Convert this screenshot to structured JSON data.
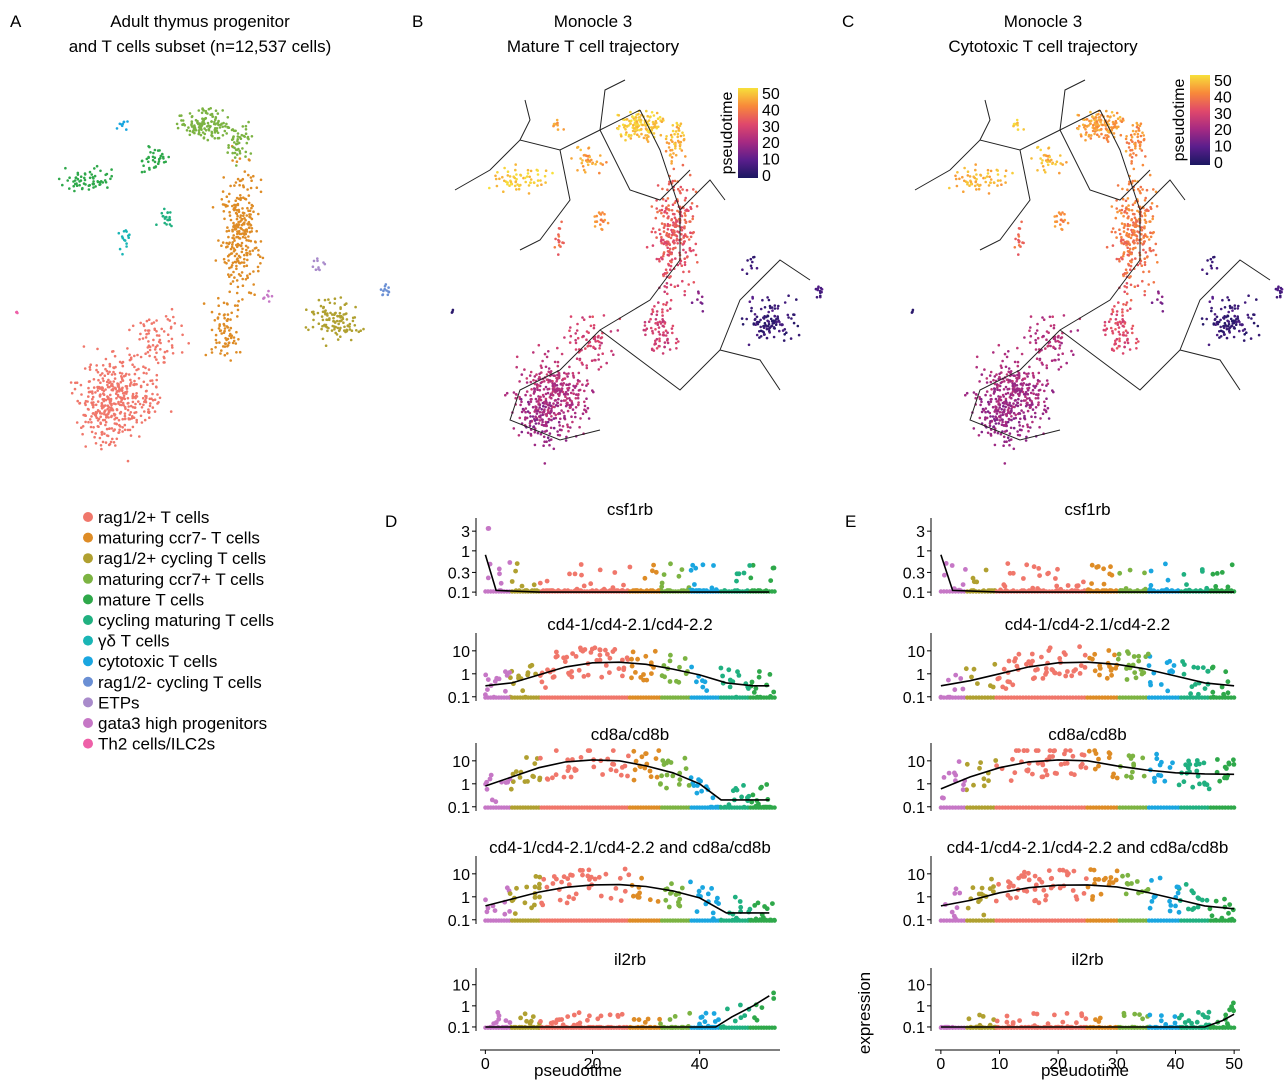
{
  "panels": {
    "A": {
      "letter": "A",
      "title_line1": "Adult thymus progenitor",
      "title_line2": "and T cells subset (n=12,537 cells)"
    },
    "B": {
      "letter": "B",
      "title_line1": "Monocle 3",
      "title_line2": "Mature T cell trajectory"
    },
    "C": {
      "letter": "C",
      "title_line1": "Monocle 3",
      "title_line2": "Cytotoxic T cell trajectory"
    },
    "D": {
      "letter": "D"
    },
    "E": {
      "letter": "E"
    }
  },
  "legend": [
    {
      "label": "rag1/2+ T cells",
      "color": "#F0776B"
    },
    {
      "label": "maturing ccr7- T cells",
      "color": "#DE8C26"
    },
    {
      "label": "rag1/2+ cycling T cells",
      "color": "#B0A030"
    },
    {
      "label": "maturing ccr7+ T cells",
      "color": "#7CB342"
    },
    {
      "label": "mature T cells",
      "color": "#2EA84A"
    },
    {
      "label": "cycling maturing T cells",
      "color": "#20B080"
    },
    {
      "label": "γδ T cells",
      "color": "#1AB5B5"
    },
    {
      "label": "cytotoxic T cells",
      "color": "#1AA6E0"
    },
    {
      "label": "rag1/2- cycling T cells",
      "color": "#6A8FD4"
    },
    {
      "label": "ETPs",
      "color": "#A98BCB"
    },
    {
      "label": "gata3 high progenitors",
      "color": "#C677C6"
    },
    {
      "label": "Th2 cells/ILC2s",
      "color": "#EE60A8"
    }
  ],
  "colorbar": {
    "title": "pseudotime",
    "ticks": [
      "0",
      "10",
      "20",
      "30",
      "40",
      "50"
    ],
    "colors": [
      "#1A1760",
      "#5A1E8C",
      "#A62A82",
      "#E0486B",
      "#F8893A",
      "#F7E03A"
    ]
  },
  "axis": {
    "xlabel": "pseudotime",
    "ylabel": "expression"
  },
  "chart_data": [
    {
      "type": "scatter",
      "panel": "D",
      "scale_y": "log",
      "x_ticks": [
        "0",
        "20",
        "40"
      ],
      "xlim": [
        -1,
        55
      ],
      "xlabel": "pseudotime",
      "facets": [
        {
          "title": "csf1rb",
          "y_ticks": [
            "3",
            "1",
            "0.3",
            "0.1"
          ],
          "ylim": [
            0.09,
            5
          ],
          "trend": [
            [
              0,
              0.8
            ],
            [
              2,
              0.11
            ],
            [
              10,
              0.1
            ],
            [
              30,
              0.1
            ],
            [
              53,
              0.1
            ]
          ]
        },
        {
          "title": "cd4-1/cd4-2.1/cd4-2.2",
          "y_ticks": [
            "10",
            "1",
            "0.1"
          ],
          "ylim": [
            0.08,
            40
          ],
          "trend": [
            [
              0,
              0.3
            ],
            [
              5,
              0.4
            ],
            [
              10,
              0.9
            ],
            [
              15,
              2
            ],
            [
              20,
              3
            ],
            [
              25,
              3.2
            ],
            [
              30,
              2.6
            ],
            [
              35,
              1.6
            ],
            [
              40,
              0.9
            ],
            [
              45,
              0.4
            ],
            [
              50,
              0.3
            ],
            [
              53,
              0.3
            ]
          ]
        },
        {
          "title": "cd8a/cd8b",
          "y_ticks": [
            "10",
            "1",
            "0.1"
          ],
          "ylim": [
            0.08,
            40
          ],
          "trend": [
            [
              0,
              0.8
            ],
            [
              5,
              2
            ],
            [
              10,
              5
            ],
            [
              15,
              9
            ],
            [
              20,
              11
            ],
            [
              25,
              10
            ],
            [
              30,
              6
            ],
            [
              35,
              3
            ],
            [
              40,
              1
            ],
            [
              44,
              0.2
            ],
            [
              53,
              0.2
            ]
          ]
        },
        {
          "title": "cd4-1/cd4-2.1/cd4-2.2 and cd8a/cd8b",
          "y_ticks": [
            "10",
            "1",
            "0.1"
          ],
          "ylim": [
            0.08,
            40
          ],
          "trend": [
            [
              0,
              0.4
            ],
            [
              5,
              0.8
            ],
            [
              10,
              1.6
            ],
            [
              15,
              2.6
            ],
            [
              20,
              3.3
            ],
            [
              25,
              3.4
            ],
            [
              30,
              2.8
            ],
            [
              35,
              1.8
            ],
            [
              40,
              0.9
            ],
            [
              45,
              0.2
            ],
            [
              53,
              0.2
            ]
          ]
        },
        {
          "title": "il2rb",
          "y_ticks": [
            "10",
            "1",
            "0.1"
          ],
          "ylim": [
            0.08,
            40
          ],
          "trend": [
            [
              0,
              0.1
            ],
            [
              40,
              0.1
            ],
            [
              43,
              0.1
            ],
            [
              46,
              0.3
            ],
            [
              50,
              1
            ],
            [
              53,
              3
            ]
          ]
        }
      ]
    },
    {
      "type": "scatter",
      "panel": "E",
      "scale_y": "log",
      "x_ticks": [
        "0",
        "10",
        "20",
        "30",
        "40",
        "50"
      ],
      "xlim": [
        -1,
        51
      ],
      "xlabel": "pseudotime",
      "ylabel": "expression",
      "facets": [
        {
          "title": "csf1rb",
          "y_ticks": [
            "3",
            "1",
            "0.3",
            "0.1"
          ],
          "ylim": [
            0.09,
            5
          ],
          "trend": [
            [
              0,
              0.8
            ],
            [
              2,
              0.11
            ],
            [
              10,
              0.1
            ],
            [
              30,
              0.1
            ],
            [
              50,
              0.1
            ]
          ]
        },
        {
          "title": "cd4-1/cd4-2.1/cd4-2.2",
          "y_ticks": [
            "10",
            "1",
            "0.1"
          ],
          "ylim": [
            0.08,
            40
          ],
          "trend": [
            [
              0,
              0.3
            ],
            [
              5,
              0.5
            ],
            [
              10,
              1
            ],
            [
              15,
              2
            ],
            [
              20,
              3
            ],
            [
              25,
              3.2
            ],
            [
              30,
              2.6
            ],
            [
              35,
              1.6
            ],
            [
              40,
              0.8
            ],
            [
              45,
              0.4
            ],
            [
              50,
              0.3
            ]
          ]
        },
        {
          "title": "cd8a/cd8b",
          "y_ticks": [
            "10",
            "1",
            "0.1"
          ],
          "ylim": [
            0.08,
            40
          ],
          "trend": [
            [
              0,
              0.6
            ],
            [
              5,
              2
            ],
            [
              10,
              5
            ],
            [
              15,
              9
            ],
            [
              20,
              11
            ],
            [
              25,
              10
            ],
            [
              30,
              6
            ],
            [
              35,
              4
            ],
            [
              40,
              3
            ],
            [
              45,
              2.7
            ],
            [
              50,
              2.6
            ]
          ]
        },
        {
          "title": "cd4-1/cd4-2.1/cd4-2.2 and cd8a/cd8b",
          "y_ticks": [
            "10",
            "1",
            "0.1"
          ],
          "ylim": [
            0.08,
            40
          ],
          "trend": [
            [
              0,
              0.4
            ],
            [
              5,
              0.7
            ],
            [
              10,
              1.5
            ],
            [
              15,
              2.5
            ],
            [
              20,
              3.2
            ],
            [
              25,
              3.3
            ],
            [
              30,
              2.7
            ],
            [
              35,
              1.6
            ],
            [
              40,
              0.8
            ],
            [
              45,
              0.4
            ],
            [
              50,
              0.3
            ]
          ]
        },
        {
          "title": "il2rb",
          "y_ticks": [
            "10",
            "1",
            "0.1"
          ],
          "ylim": [
            0.08,
            40
          ],
          "trend": [
            [
              0,
              0.1
            ],
            [
              40,
              0.1
            ],
            [
              45,
              0.1
            ],
            [
              48,
              0.2
            ],
            [
              50,
              0.4
            ]
          ]
        }
      ]
    }
  ]
}
